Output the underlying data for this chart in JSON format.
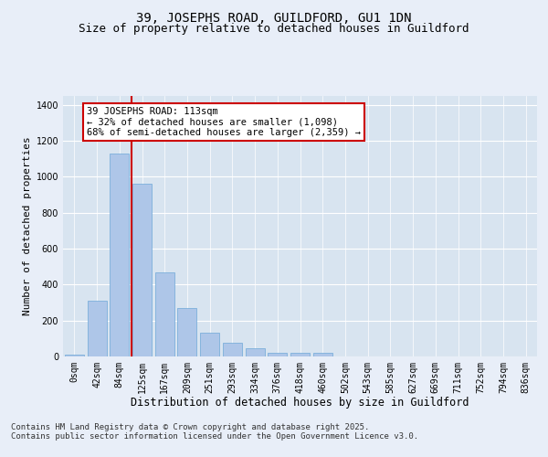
{
  "title1": "39, JOSEPHS ROAD, GUILDFORD, GU1 1DN",
  "title2": "Size of property relative to detached houses in Guildford",
  "xlabel": "Distribution of detached houses by size in Guildford",
  "ylabel": "Number of detached properties",
  "bar_labels": [
    "0sqm",
    "42sqm",
    "84sqm",
    "125sqm",
    "167sqm",
    "209sqm",
    "251sqm",
    "293sqm",
    "334sqm",
    "376sqm",
    "418sqm",
    "460sqm",
    "502sqm",
    "543sqm",
    "585sqm",
    "627sqm",
    "669sqm",
    "711sqm",
    "752sqm",
    "794sqm",
    "836sqm"
  ],
  "bar_values": [
    10,
    310,
    1130,
    960,
    470,
    270,
    130,
    75,
    47,
    20,
    22,
    20,
    0,
    0,
    0,
    0,
    0,
    0,
    0,
    0,
    0
  ],
  "bar_color": "#aec6e8",
  "bar_edgecolor": "#6ea8d8",
  "vline_x": 2.55,
  "vline_color": "#cc0000",
  "annotation_text": "39 JOSEPHS ROAD: 113sqm\n← 32% of detached houses are smaller (1,098)\n68% of semi-detached houses are larger (2,359) →",
  "annotation_box_facecolor": "#ffffff",
  "annotation_box_edgecolor": "#cc0000",
  "ylim": [
    0,
    1450
  ],
  "yticks": [
    0,
    200,
    400,
    600,
    800,
    1000,
    1200,
    1400
  ],
  "bg_color": "#e8eef8",
  "plot_bg_color": "#d8e4f0",
  "footer": "Contains HM Land Registry data © Crown copyright and database right 2025.\nContains public sector information licensed under the Open Government Licence v3.0.",
  "title1_fontsize": 10,
  "title2_fontsize": 9,
  "xlabel_fontsize": 8.5,
  "ylabel_fontsize": 8,
  "tick_fontsize": 7,
  "annotation_fontsize": 7.5,
  "footer_fontsize": 6.5
}
